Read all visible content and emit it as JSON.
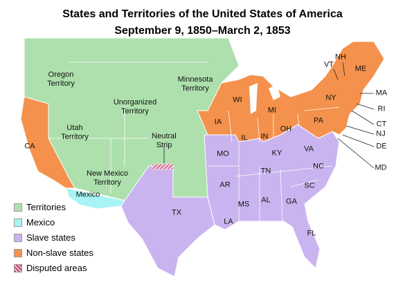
{
  "title": {
    "line1": "States and Territories of the United States of America",
    "line2": "September 9, 1850–March 2, 1853"
  },
  "legend": [
    {
      "label": "Territories",
      "color": "#ade0ad"
    },
    {
      "label": "Mexico",
      "color": "#a8f3f3"
    },
    {
      "label": "Slave states",
      "color": "#c9b4ef"
    },
    {
      "label": "Non-slave states",
      "color": "#f4914c"
    },
    {
      "label": "Disputed areas",
      "color": "#c2628a"
    }
  ],
  "labels": [
    "Oregon Territory",
    "Unorganized Territory",
    "Minnesota Territory",
    "Utah Territory",
    "Neutral Strip",
    "New Mexico Territory",
    "Mexico",
    "CA",
    "TX",
    "IA",
    "WI",
    "MI",
    "IL",
    "IN",
    "OH",
    "PA",
    "NY",
    "ME",
    "VT",
    "NH",
    "MA",
    "RI",
    "CT",
    "NJ",
    "DE",
    "MD",
    "MO",
    "KY",
    "VA",
    "TN",
    "NC",
    "AR",
    "SC",
    "MS",
    "AL",
    "GA",
    "LA",
    "FL"
  ]
}
